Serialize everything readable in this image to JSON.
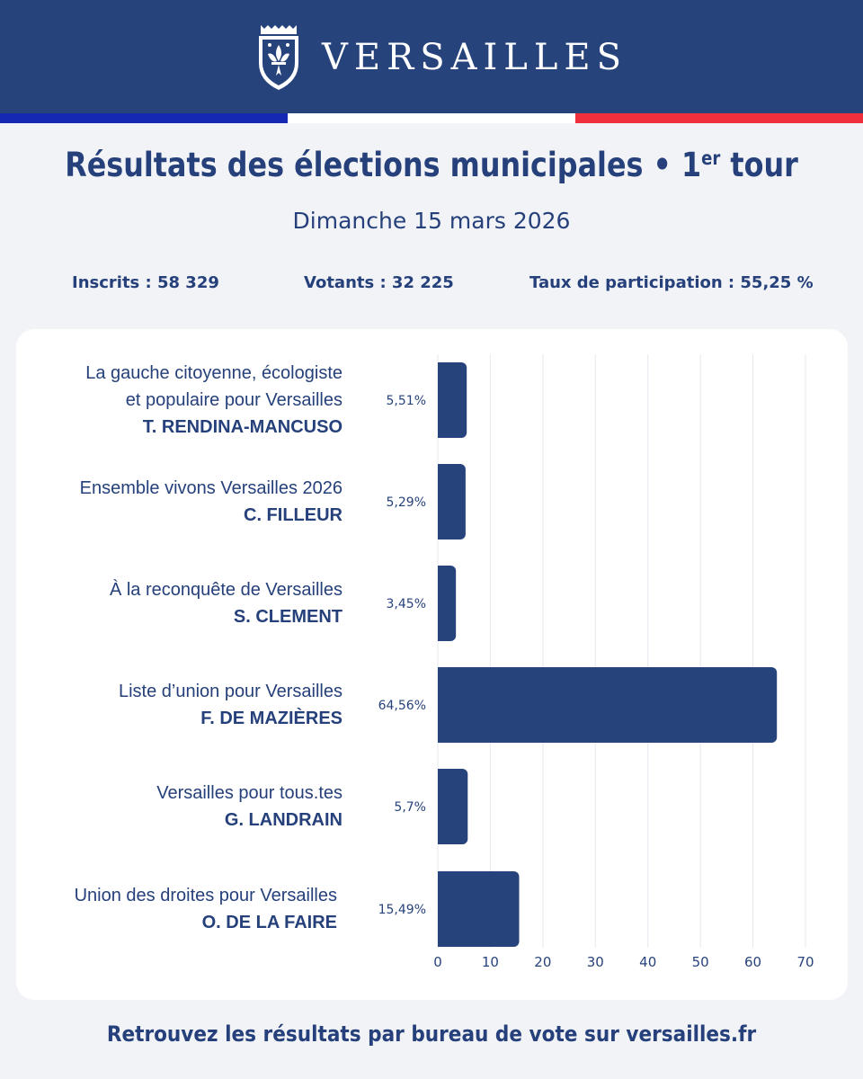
{
  "header": {
    "brand": "VERSAILLES",
    "logo_icon": "versailles-coat-of-arms-icon"
  },
  "title": {
    "main": "Résultats des élections municipales • 1",
    "sup": "er",
    "suffix": " tour"
  },
  "subtitle": "Dimanche 15 mars 2026",
  "stats": {
    "inscrits": "Inscrits : 58 329",
    "votants": "Votants : 32 225",
    "participation": "Taux de participation : 55,25 %"
  },
  "colors": {
    "navy": "#27437b",
    "bar": "#27437b",
    "flag_blue": "#1428b4",
    "flag_white": "#ffffff",
    "flag_red": "#ef2f3c",
    "background": "#f2f3f7"
  },
  "chart_data": {
    "type": "bar",
    "orientation": "horizontal",
    "categories": [
      {
        "list": [
          "La gauche citoyenne, écologiste",
          "et populaire pour Versailles"
        ],
        "candidate": "T. RENDINA-MANCUSO"
      },
      {
        "list": [
          "Ensemble vivons Versailles 2026"
        ],
        "candidate": "C. FILLEUR"
      },
      {
        "list": [
          "À la reconquête de Versailles"
        ],
        "candidate": "S. CLEMENT"
      },
      {
        "list": [
          "Liste d’union pour Versailles"
        ],
        "candidate": "F. DE MAZIÈRES"
      },
      {
        "list": [
          "Versailles pour tous.tes"
        ],
        "candidate": "G. LANDRAIN"
      },
      {
        "list": [
          "Union des droites pour Versailles"
        ],
        "candidate": "O. DE LA FAIRE"
      }
    ],
    "values": [
      5.51,
      5.29,
      3.45,
      64.56,
      5.7,
      15.49
    ],
    "value_labels": [
      "5,51%",
      "5,29%",
      "3,45%",
      "64,56%",
      "5,7%",
      "15,49%"
    ],
    "xlim": [
      0,
      70
    ],
    "xticks": [
      0,
      10,
      20,
      30,
      40,
      50,
      60,
      70
    ],
    "grid": true,
    "legend": "none"
  },
  "footer": "Retrouvez les résultats par bureau de vote sur versailles.fr"
}
